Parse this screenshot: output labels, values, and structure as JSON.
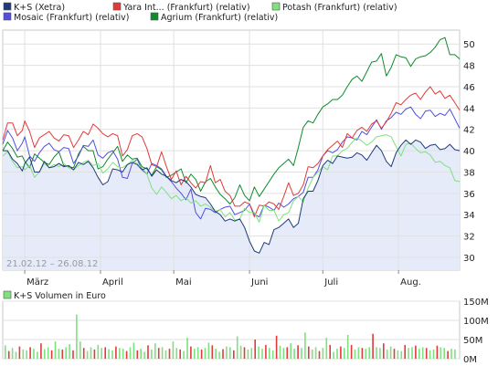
{
  "chart_data": [
    {
      "type": "line",
      "legend": [
        {
          "name": "K+S (Xetra)",
          "color": "#1f3a78"
        },
        {
          "name": "Yara Int... (Frankfurt) (relativ)",
          "color": "#e23a3a"
        },
        {
          "name": "Potash (Frankfurt) (relativ)",
          "color": "#7fe07f"
        },
        {
          "name": "Mosaic (Frankfurt) (relativ)",
          "color": "#5050dc"
        },
        {
          "name": "Agrium (Frankfurt) (relativ)",
          "color": "#0f8a2c"
        }
      ],
      "date_range": "21.02.12 – 26.08.12",
      "x_tick_labels": [
        "März",
        "April",
        "Mai",
        "Juni",
        "Juli",
        "Aug."
      ],
      "y_ticks": [
        30,
        32,
        34,
        36,
        38,
        40,
        42,
        44,
        46,
        48,
        50
      ],
      "ylim": [
        28.8,
        51.3
      ],
      "grid": true,
      "x_days": [
        0,
        2,
        4,
        6,
        8,
        9,
        11,
        13,
        15,
        17,
        19,
        21,
        23,
        25,
        27,
        29,
        31,
        33,
        35,
        37,
        39,
        41,
        43,
        45,
        47,
        49,
        51,
        53,
        55,
        57,
        59,
        61,
        63,
        65,
        67,
        69,
        71,
        73,
        75,
        77,
        79,
        81,
        83,
        85,
        87,
        89,
        91,
        93,
        95,
        97,
        99,
        101,
        103,
        105,
        107,
        109,
        111,
        113,
        115,
        117,
        119,
        121,
        123,
        125,
        127,
        129,
        131,
        133,
        135,
        137,
        139,
        141,
        143,
        145,
        147,
        149,
        151,
        153,
        155,
        157,
        159,
        161,
        163,
        165,
        167,
        169,
        171,
        173,
        175,
        177,
        179,
        181,
        183,
        185,
        187
      ],
      "series": [
        {
          "name": "K+S (Xetra)",
          "color": "#1f3a78",
          "fill": "#e6ebfa",
          "values": [
            40.0,
            40.0,
            39.2,
            38.8,
            38.1,
            38.8,
            39.4,
            38.0,
            38.0,
            39.0,
            38.4,
            38.5,
            38.8,
            38.5,
            38.6,
            38.2,
            38.9,
            38.7,
            39.0,
            38.4,
            37.5,
            36.8,
            37.1,
            38.3,
            38.2,
            38.0,
            38.7,
            38.9,
            38.7,
            38.2,
            38.4,
            37.6,
            38.2,
            37.8,
            37.6,
            37.2,
            37.0,
            37.3,
            37.1,
            36.6,
            35.9,
            35.7,
            35.6,
            35.0,
            34.3,
            34.0,
            33.4,
            33.6,
            33.4,
            33.6,
            32.8,
            31.5,
            30.6,
            30.4,
            31.4,
            31.2,
            32.6,
            32.8,
            33.2,
            33.6,
            32.8,
            33.2,
            35.5,
            36.2,
            36.2,
            37.2,
            38.6,
            39.1,
            38.8,
            39.5,
            39.4,
            39.3,
            39.4,
            39.8,
            39.6,
            39.1,
            39.8,
            40.5,
            40.0,
            39.0,
            38.5,
            39.8,
            40.5,
            41.0,
            40.6,
            41.0,
            40.8,
            40.2,
            40.5,
            40.6,
            40.1,
            40.2,
            40.6,
            40.1,
            40.0
          ]
        },
        {
          "name": "Yara Int... (Frankfurt) (relativ)",
          "color": "#e23a3a",
          "fill": null,
          "values": [
            41.0,
            42.6,
            42.6,
            41.4,
            41.9,
            42.8,
            41.8,
            40.3,
            41.2,
            41.5,
            41.8,
            41.2,
            40.9,
            41.5,
            41.4,
            40.3,
            41.0,
            41.8,
            41.5,
            42.5,
            42.1,
            41.6,
            41.3,
            41.6,
            41.4,
            39.5,
            40.1,
            41.4,
            41.6,
            41.3,
            40.2,
            38.7,
            38.5,
            39.9,
            38.5,
            37.3,
            38.1,
            36.8,
            37.6,
            37.0,
            36.5,
            37.1,
            37.0,
            38.6,
            37.0,
            37.3,
            36.2,
            35.8,
            34.8,
            34.8,
            35.2,
            35.0,
            33.8,
            34.9,
            34.8,
            35.2,
            35.0,
            34.5,
            35.7,
            37.0,
            35.8,
            36.0,
            36.8,
            38.5,
            38.4,
            38.8,
            39.5,
            40.1,
            40.5,
            40.9,
            40.3,
            41.6,
            41.2,
            41.9,
            42.2,
            41.8,
            42.5,
            42.8,
            42.1,
            42.7,
            43.5,
            44.5,
            44.3,
            44.8,
            45.2,
            45.4,
            44.8,
            45.5,
            46.0,
            45.3,
            45.6,
            44.9,
            45.2,
            44.5,
            43.8
          ]
        },
        {
          "name": "Potash (Frankfurt) (relativ)",
          "color": "#7fe07f",
          "fill": null,
          "values": [
            39.5,
            39.9,
            39.0,
            38.4,
            38.5,
            38.2,
            38.6,
            37.5,
            38.0,
            38.8,
            38.4,
            38.7,
            38.5,
            38.8,
            38.4,
            38.2,
            38.6,
            38.9,
            39.1,
            38.6,
            38.8,
            37.9,
            38.3,
            38.9,
            38.5,
            38.4,
            38.7,
            39.1,
            38.8,
            38.4,
            37.8,
            36.5,
            35.9,
            36.6,
            36.1,
            35.5,
            35.8,
            35.3,
            35.6,
            35.1,
            35.3,
            34.8,
            35.0,
            34.7,
            34.3,
            34.5,
            33.8,
            34.2,
            33.5,
            33.6,
            34.6,
            34.2,
            34.2,
            33.3,
            34.9,
            34.4,
            34.4,
            33.4,
            34.0,
            34.2,
            35.3,
            35.7,
            35.2,
            36.5,
            37.5,
            38.0,
            38.5,
            38.2,
            39.5,
            39.5,
            40.0,
            40.2,
            40.8,
            41.2,
            40.9,
            40.5,
            40.8,
            41.3,
            41.4,
            41.5,
            41.3,
            40.4,
            39.5,
            40.6,
            40.7,
            40.2,
            39.8,
            39.9,
            39.6,
            38.9,
            39.0,
            38.6,
            38.4,
            37.2,
            37.1
          ]
        },
        {
          "name": "Mosaic (Frankfurt) (relativ)",
          "color": "#5050dc",
          "fill": null,
          "values": [
            40.6,
            41.9,
            41.2,
            40.0,
            40.7,
            41.3,
            39.5,
            39.0,
            39.8,
            40.4,
            40.7,
            40.1,
            39.9,
            40.3,
            40.2,
            38.8,
            39.5,
            40.5,
            40.4,
            41.0,
            39.6,
            39.3,
            39.8,
            40.0,
            39.2,
            37.5,
            37.4,
            38.8,
            39.2,
            38.2,
            37.8,
            38.8,
            38.6,
            38.3,
            37.6,
            37.1,
            36.5,
            36.0,
            35.4,
            36.4,
            34.2,
            33.6,
            34.6,
            34.5,
            34.2,
            34.5,
            34.7,
            34.8,
            34.0,
            34.2,
            34.4,
            35.0,
            34.0,
            33.8,
            34.9,
            34.7,
            34.4,
            35.1,
            34.7,
            35.0,
            35.5,
            35.7,
            36.1,
            37.5,
            37.5,
            38.2,
            39.5,
            40.0,
            39.8,
            40.1,
            40.8,
            41.3,
            41.2,
            41.0,
            41.8,
            41.5,
            42.2,
            42.9,
            42.0,
            42.8,
            43.1,
            43.6,
            43.4,
            43.9,
            44.1,
            43.4,
            43.0,
            43.7,
            43.8,
            43.2,
            43.5,
            43.3,
            43.9,
            43.0,
            42.1
          ]
        },
        {
          "name": "Agrium (Frankfurt) (relativ)",
          "color": "#0f8a2c",
          "fill": null,
          "values": [
            40.0,
            40.8,
            40.2,
            39.4,
            39.5,
            39.0,
            38.4,
            39.7,
            39.3,
            38.9,
            38.7,
            39.4,
            39.9,
            38.6,
            38.5,
            38.4,
            39.7,
            40.4,
            40.0,
            40.0,
            38.3,
            38.5,
            39.2,
            39.8,
            40.4,
            39.0,
            39.6,
            39.2,
            39.3,
            38.5,
            38.3,
            37.7,
            38.5,
            38.2,
            37.5,
            37.7,
            38.0,
            38.3,
            37.0,
            37.8,
            37.3,
            36.2,
            37.1,
            37.4,
            36.6,
            35.9,
            35.5,
            35.0,
            35.6,
            36.8,
            35.8,
            35.3,
            36.6,
            35.7,
            36.4,
            37.1,
            37.8,
            38.4,
            38.8,
            39.2,
            38.6,
            40.3,
            42.2,
            42.8,
            42.6,
            43.4,
            44.1,
            44.4,
            44.8,
            44.8,
            45.2,
            46.0,
            46.7,
            47.0,
            46.5,
            47.4,
            48.3,
            48.4,
            49.1,
            47.0,
            47.8,
            49.0,
            48.8,
            48.7,
            47.9,
            48.6,
            48.8,
            48.9,
            49.2,
            49.7,
            50.4,
            50.6,
            49.0,
            49.0,
            48.6
          ]
        }
      ]
    },
    {
      "type": "bar",
      "title": "K+S Volumen in Euro",
      "color": "#7fe07f",
      "highlight_color": "#e23a3a",
      "y_ticks": [
        "150M",
        "100M",
        "50M",
        "0M"
      ],
      "ylim": [
        0,
        150
      ],
      "values": [
        35,
        20,
        28,
        18,
        32,
        24,
        22,
        30,
        26,
        18,
        40,
        25,
        30,
        22,
        45,
        26,
        24,
        30,
        38,
        22,
        115,
        45,
        28,
        20,
        30,
        24,
        36,
        28,
        30,
        25,
        22,
        32,
        28,
        26,
        20,
        30,
        42,
        22,
        26,
        18,
        35,
        24,
        40,
        28,
        30,
        22,
        26,
        45,
        28,
        24,
        20,
        55,
        32,
        26,
        30,
        24,
        28,
        42,
        35,
        26,
        18,
        25,
        32,
        30,
        22,
        58,
        34,
        30,
        24,
        28,
        50,
        32,
        26,
        36,
        28,
        22,
        60,
        34,
        28,
        30,
        40,
        26,
        35,
        28,
        68,
        32,
        24,
        30,
        20,
        28,
        55,
        36,
        18,
        26,
        32,
        28,
        62,
        36,
        24,
        30,
        28,
        26,
        30,
        65,
        30,
        28,
        40,
        24,
        32,
        26,
        22,
        20,
        36,
        28,
        30,
        34,
        26,
        30,
        28,
        22,
        24,
        34,
        30,
        28,
        20,
        26,
        24
      ]
    }
  ]
}
